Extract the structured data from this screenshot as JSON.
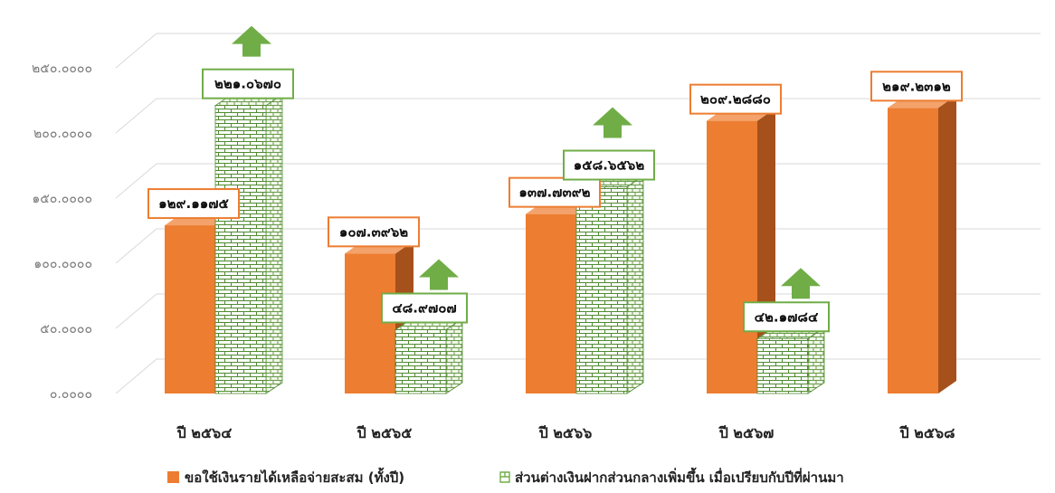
{
  "chart_data": {
    "type": "bar",
    "categories": [
      "ปี ๒๕๖๔",
      "ปี ๒๕๖๕",
      "ปี ๒๕๖๖",
      "ปี ๒๕๖๗",
      "ปี ๒๕๖๘"
    ],
    "ylim": [
      0,
      250
    ],
    "yticks": [
      "๐.๐๐๐๐",
      "๕๐.๐๐๐๐",
      "๑๐๐.๐๐๐๐",
      "๑๕๐.๐๐๐๐",
      "๒๐๐.๐๐๐๐",
      "๒๕๐.๐๐๐๐"
    ],
    "grid": true,
    "legend_position": "bottom",
    "series": [
      {
        "name": "ขอใช้เงินรายได้เหลือจ่ายสะสม (ทั้งปี)",
        "color": "#ED7D31",
        "values": [
          129.1175,
          107.3962,
          137.7392,
          209.288,
          219.2312
        ],
        "labels": [
          "๑๒๙.๑๑๗๕",
          "๑๐๗.๓๙๖๒",
          "๑๓๗.๗๓๙๒",
          "๒๐๙.๒๘๘๐",
          "๒๑๙.๒๓๑๒"
        ]
      },
      {
        "name": "ส่วนต่างเงินฝากส่วนกลางเพิ่มขึ้น เมื่อเปรียบกับปีที่ผ่านมา",
        "color": "#70AD47",
        "values": [
          221.067,
          48.9707,
          158.6562,
          42.1784,
          null
        ],
        "labels": [
          "๒๒๑.๐๖๗๐",
          "๔๘.๙๗๐๗",
          "๑๕๘.๖๕๖๒",
          "๔๒.๑๗๘๔",
          null
        ],
        "increase_arrows": true
      }
    ]
  }
}
